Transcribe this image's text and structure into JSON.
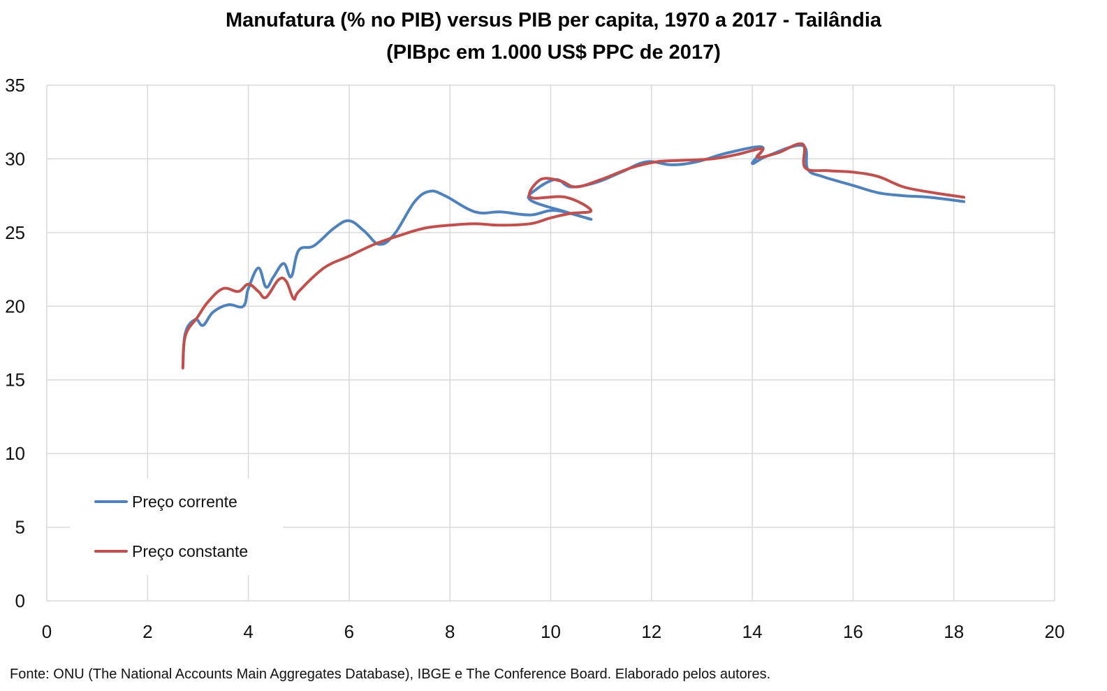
{
  "chart_data": {
    "type": "line",
    "title": "Manufatura (% no PIB) versus PIB per capita, 1970 a 2017 - Tailândia",
    "subtitle": "(PIBpc em 1.000 US$ PPC de 2017)",
    "xlabel": "",
    "ylabel": "",
    "xlim": [
      0,
      20
    ],
    "ylim": [
      0,
      35
    ],
    "x_ticks": [
      "0",
      "2",
      "4",
      "6",
      "8",
      "10",
      "12",
      "14",
      "16",
      "18",
      "20"
    ],
    "y_ticks": [
      "0",
      "5",
      "10",
      "15",
      "20",
      "25",
      "30",
      "35"
    ],
    "grid": true,
    "legend_position": "bottom-left",
    "series": [
      {
        "name": "Preço corrente",
        "color": "#4f81bd",
        "points": [
          [
            2.7,
            15.9
          ],
          [
            2.75,
            18.2
          ],
          [
            2.95,
            19.1
          ],
          [
            3.1,
            18.7
          ],
          [
            3.3,
            19.6
          ],
          [
            3.6,
            20.1
          ],
          [
            3.9,
            20.0
          ],
          [
            4.0,
            21.2
          ],
          [
            4.2,
            22.6
          ],
          [
            4.35,
            21.3
          ],
          [
            4.5,
            22.0
          ],
          [
            4.7,
            22.9
          ],
          [
            4.85,
            22.0
          ],
          [
            5.0,
            23.8
          ],
          [
            5.3,
            24.1
          ],
          [
            5.7,
            25.3
          ],
          [
            6.0,
            25.8
          ],
          [
            6.3,
            25.1
          ],
          [
            6.6,
            24.2
          ],
          [
            6.9,
            24.9
          ],
          [
            7.3,
            27.1
          ],
          [
            7.6,
            27.8
          ],
          [
            7.9,
            27.5
          ],
          [
            8.5,
            26.4
          ],
          [
            9.0,
            26.4
          ],
          [
            9.6,
            26.2
          ],
          [
            10.1,
            26.5
          ],
          [
            10.8,
            25.9
          ],
          [
            10.3,
            26.4
          ],
          [
            9.6,
            27.2
          ],
          [
            9.7,
            27.9
          ],
          [
            10.1,
            28.6
          ],
          [
            10.4,
            28.1
          ],
          [
            10.9,
            28.4
          ],
          [
            11.4,
            29.1
          ],
          [
            11.9,
            29.8
          ],
          [
            12.4,
            29.6
          ],
          [
            12.9,
            29.8
          ],
          [
            13.5,
            30.4
          ],
          [
            14.2,
            30.8
          ],
          [
            14.0,
            29.7
          ],
          [
            14.3,
            30.2
          ],
          [
            15.0,
            30.9
          ],
          [
            15.1,
            29.3
          ],
          [
            15.4,
            28.8
          ],
          [
            16.0,
            28.2
          ],
          [
            16.5,
            27.7
          ],
          [
            17.0,
            27.5
          ],
          [
            17.5,
            27.4
          ],
          [
            18.2,
            27.1
          ]
        ]
      },
      {
        "name": "Preço constante",
        "color": "#c0504d",
        "points": [
          [
            2.7,
            15.8
          ],
          [
            2.75,
            18.0
          ],
          [
            3.0,
            19.3
          ],
          [
            3.2,
            20.3
          ],
          [
            3.5,
            21.2
          ],
          [
            3.8,
            21.0
          ],
          [
            4.0,
            21.5
          ],
          [
            4.2,
            21.0
          ],
          [
            4.35,
            20.6
          ],
          [
            4.6,
            21.8
          ],
          [
            4.75,
            21.7
          ],
          [
            4.9,
            20.5
          ],
          [
            5.0,
            21.0
          ],
          [
            5.5,
            22.6
          ],
          [
            6.0,
            23.4
          ],
          [
            6.5,
            24.2
          ],
          [
            7.0,
            24.8
          ],
          [
            7.5,
            25.3
          ],
          [
            8.0,
            25.5
          ],
          [
            8.5,
            25.6
          ],
          [
            9.0,
            25.5
          ],
          [
            9.6,
            25.6
          ],
          [
            10.0,
            26.0
          ],
          [
            10.4,
            26.3
          ],
          [
            10.8,
            26.5
          ],
          [
            10.3,
            27.4
          ],
          [
            9.6,
            27.4
          ],
          [
            9.8,
            28.6
          ],
          [
            10.2,
            28.5
          ],
          [
            10.5,
            28.1
          ],
          [
            11.0,
            28.6
          ],
          [
            11.6,
            29.4
          ],
          [
            12.1,
            29.8
          ],
          [
            12.6,
            29.9
          ],
          [
            13.2,
            30.0
          ],
          [
            13.7,
            30.3
          ],
          [
            14.2,
            30.7
          ],
          [
            14.1,
            30.1
          ],
          [
            14.5,
            30.4
          ],
          [
            15.0,
            31.0
          ],
          [
            15.05,
            29.4
          ],
          [
            15.5,
            29.2
          ],
          [
            16.0,
            29.1
          ],
          [
            16.5,
            28.8
          ],
          [
            17.0,
            28.1
          ],
          [
            17.6,
            27.7
          ],
          [
            18.2,
            27.4
          ]
        ]
      }
    ]
  },
  "source_note": "Fonte: ONU (The National Accounts Main Aggregates Database), IBGE e The Conference Board. Elaborado pelos autores."
}
